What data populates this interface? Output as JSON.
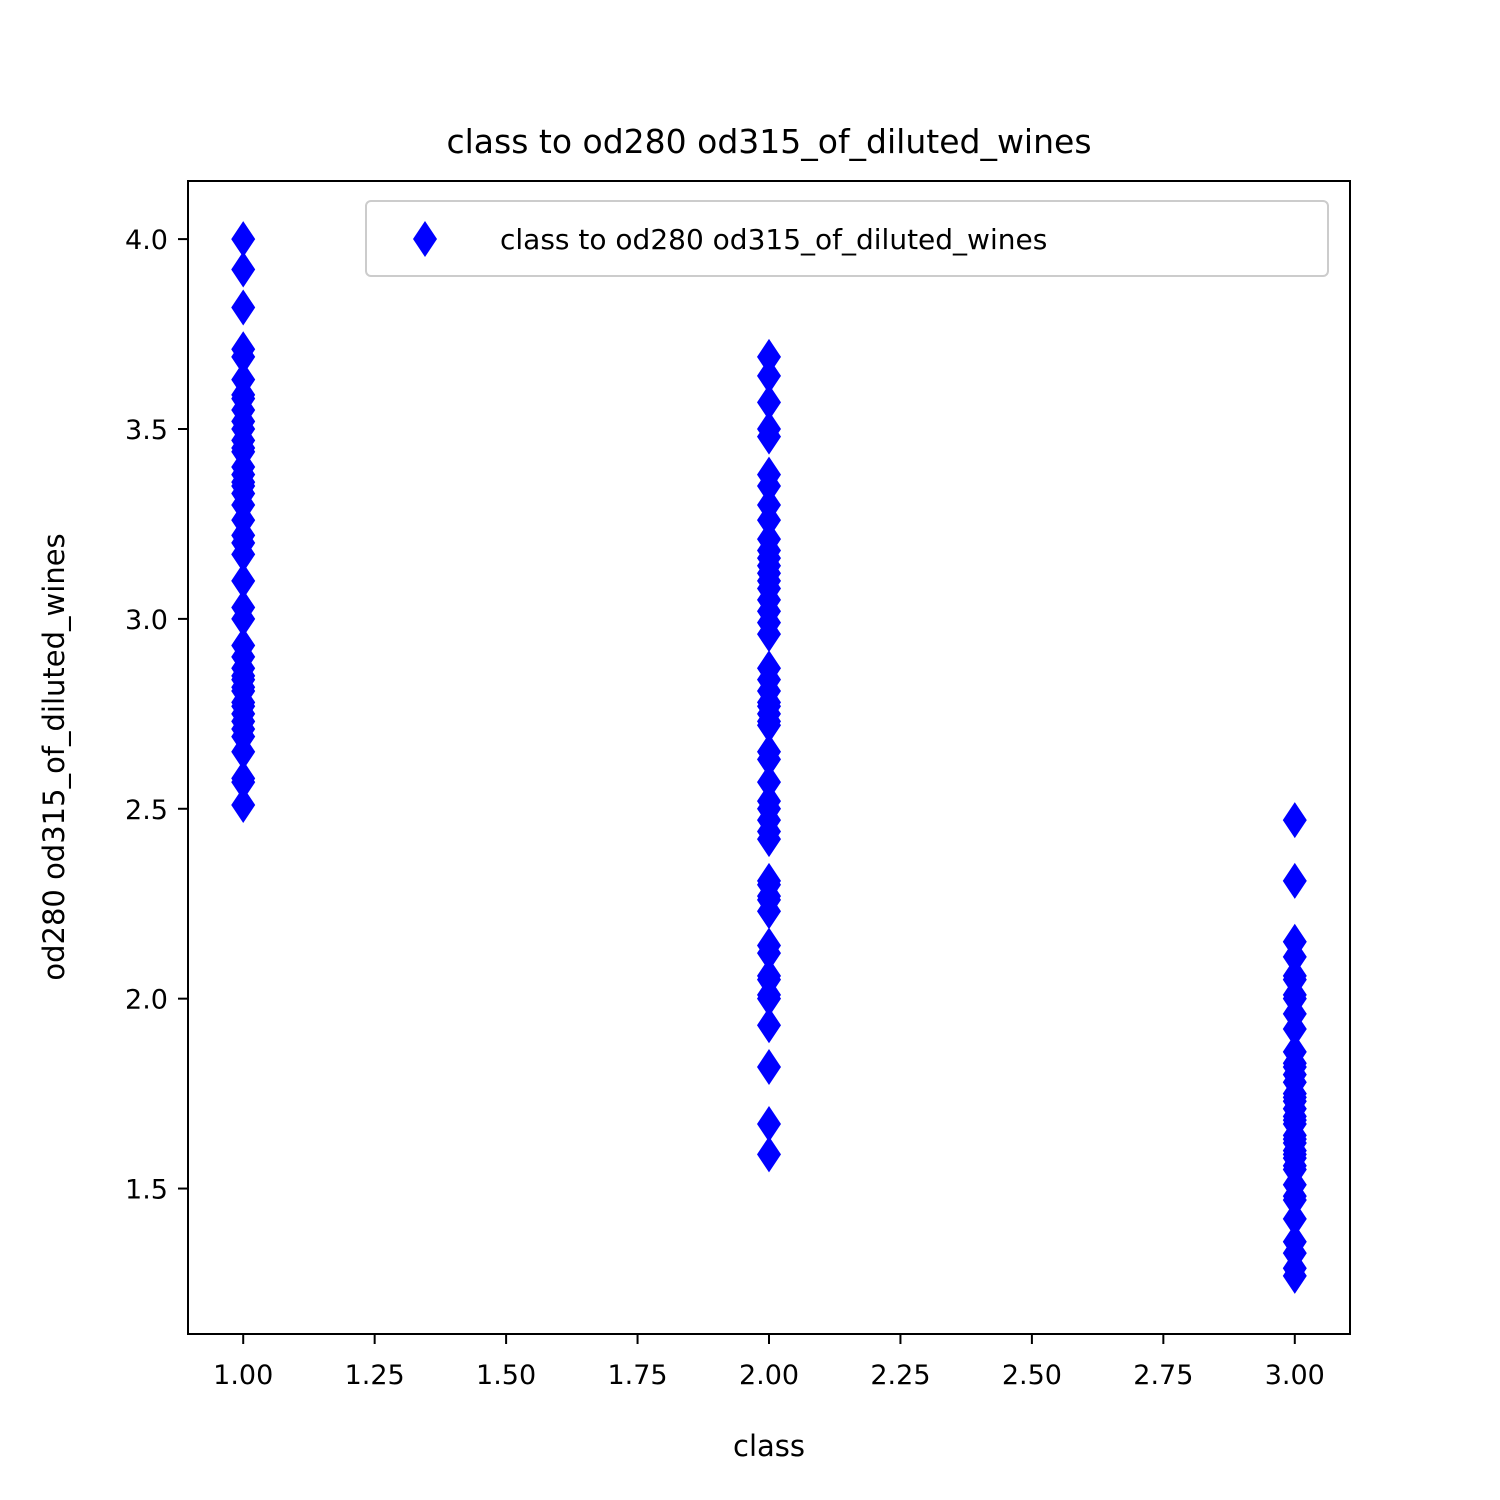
{
  "chart_data": {
    "type": "scatter",
    "title": "class to od280 od315_of_diluted_wines",
    "xlabel": "class",
    "ylabel": "od280 od315_of_diluted_wines",
    "xlim": [
      0.895,
      3.105
    ],
    "ylim": [
      1.117,
      4.153
    ],
    "xticks": [
      1.0,
      1.25,
      1.5,
      1.75,
      2.0,
      2.25,
      2.5,
      2.75,
      3.0
    ],
    "xtick_labels": [
      "1.00",
      "1.25",
      "1.50",
      "1.75",
      "2.00",
      "2.25",
      "2.50",
      "2.75",
      "3.00"
    ],
    "yticks": [
      1.5,
      2.0,
      2.5,
      3.0,
      3.5,
      4.0
    ],
    "ytick_labels": [
      "1.5",
      "2.0",
      "2.5",
      "3.0",
      "3.5",
      "4.0"
    ],
    "grid": false,
    "legend": "upper right",
    "marker": "thin-diamond",
    "color": "#0000ff",
    "series": [
      {
        "name": "class to od280 od315_of_diluted_wines",
        "points": [
          [
            1,
            4.0
          ],
          [
            1,
            3.92
          ],
          [
            1,
            3.82
          ],
          [
            1,
            3.71
          ],
          [
            1,
            3.69
          ],
          [
            1,
            3.63
          ],
          [
            1,
            3.59
          ],
          [
            1,
            3.58
          ],
          [
            1,
            3.55
          ],
          [
            1,
            3.52
          ],
          [
            1,
            3.5
          ],
          [
            1,
            3.47
          ],
          [
            1,
            3.45
          ],
          [
            1,
            3.44
          ],
          [
            1,
            3.4
          ],
          [
            1,
            3.38
          ],
          [
            1,
            3.36
          ],
          [
            1,
            3.35
          ],
          [
            1,
            3.33
          ],
          [
            1,
            3.3
          ],
          [
            1,
            3.26
          ],
          [
            1,
            3.22
          ],
          [
            1,
            3.2
          ],
          [
            1,
            3.17
          ],
          [
            1,
            3.1
          ],
          [
            1,
            3.03
          ],
          [
            1,
            3.0
          ],
          [
            1,
            2.93
          ],
          [
            1,
            2.9
          ],
          [
            1,
            2.87
          ],
          [
            1,
            2.85
          ],
          [
            1,
            2.84
          ],
          [
            1,
            2.82
          ],
          [
            1,
            2.81
          ],
          [
            1,
            2.78
          ],
          [
            1,
            2.77
          ],
          [
            1,
            2.75
          ],
          [
            1,
            2.73
          ],
          [
            1,
            2.71
          ],
          [
            1,
            2.69
          ],
          [
            1,
            2.65
          ],
          [
            1,
            2.58
          ],
          [
            1,
            2.57
          ],
          [
            1,
            2.51
          ],
          [
            2,
            3.69
          ],
          [
            2,
            3.64
          ],
          [
            2,
            3.57
          ],
          [
            2,
            3.5
          ],
          [
            2,
            3.48
          ],
          [
            2,
            3.38
          ],
          [
            2,
            3.35
          ],
          [
            2,
            3.3
          ],
          [
            2,
            3.26
          ],
          [
            2,
            3.21
          ],
          [
            2,
            3.18
          ],
          [
            2,
            3.16
          ],
          [
            2,
            3.14
          ],
          [
            2,
            3.12
          ],
          [
            2,
            3.1
          ],
          [
            2,
            3.08
          ],
          [
            2,
            3.05
          ],
          [
            2,
            3.02
          ],
          [
            2,
            2.99
          ],
          [
            2,
            2.96
          ],
          [
            2,
            2.87
          ],
          [
            2,
            2.84
          ],
          [
            2,
            2.81
          ],
          [
            2,
            2.78
          ],
          [
            2,
            2.77
          ],
          [
            2,
            2.75
          ],
          [
            2,
            2.73
          ],
          [
            2,
            2.72
          ],
          [
            2,
            2.65
          ],
          [
            2,
            2.63
          ],
          [
            2,
            2.57
          ],
          [
            2,
            2.52
          ],
          [
            2,
            2.5
          ],
          [
            2,
            2.47
          ],
          [
            2,
            2.44
          ],
          [
            2,
            2.42
          ],
          [
            2,
            2.31
          ],
          [
            2,
            2.3
          ],
          [
            2,
            2.27
          ],
          [
            2,
            2.26
          ],
          [
            2,
            2.23
          ],
          [
            2,
            2.14
          ],
          [
            2,
            2.12
          ],
          [
            2,
            2.06
          ],
          [
            2,
            2.05
          ],
          [
            2,
            2.01
          ],
          [
            2,
            2.0
          ],
          [
            2,
            1.93
          ],
          [
            2,
            1.82
          ],
          [
            2,
            1.67
          ],
          [
            2,
            1.59
          ],
          [
            3,
            2.47
          ],
          [
            3,
            2.31
          ],
          [
            3,
            2.15
          ],
          [
            3,
            2.11
          ],
          [
            3,
            2.06
          ],
          [
            3,
            2.05
          ],
          [
            3,
            2.01
          ],
          [
            3,
            2.0
          ],
          [
            3,
            1.96
          ],
          [
            3,
            1.92
          ],
          [
            3,
            1.86
          ],
          [
            3,
            1.83
          ],
          [
            3,
            1.82
          ],
          [
            3,
            1.8
          ],
          [
            3,
            1.78
          ],
          [
            3,
            1.75
          ],
          [
            3,
            1.74
          ],
          [
            3,
            1.73
          ],
          [
            3,
            1.71
          ],
          [
            3,
            1.69
          ],
          [
            3,
            1.68
          ],
          [
            3,
            1.67
          ],
          [
            3,
            1.64
          ],
          [
            3,
            1.63
          ],
          [
            3,
            1.62
          ],
          [
            3,
            1.6
          ],
          [
            3,
            1.59
          ],
          [
            3,
            1.58
          ],
          [
            3,
            1.56
          ],
          [
            3,
            1.55
          ],
          [
            3,
            1.51
          ],
          [
            3,
            1.48
          ],
          [
            3,
            1.47
          ],
          [
            3,
            1.42
          ],
          [
            3,
            1.36
          ],
          [
            3,
            1.33
          ],
          [
            3,
            1.29
          ],
          [
            3,
            1.27
          ]
        ]
      }
    ]
  }
}
